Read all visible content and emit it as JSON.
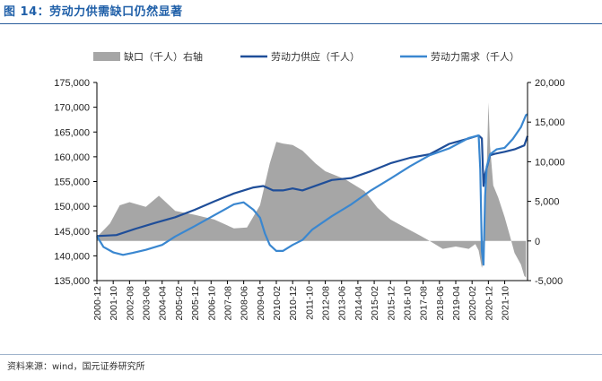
{
  "figure": {
    "title": "图 14：劳动力供需缺口仍然显著",
    "source": "资料来源：wind，国元证券研究所"
  },
  "colors": {
    "gap": "#a6a6a6",
    "supply": "#1f4e99",
    "demand": "#3a87d0",
    "title": "#1f5fa8",
    "axis": "#000000"
  },
  "chart_data": {
    "type": "line",
    "title": "",
    "xlabel": "",
    "ylabel": "",
    "ylabel_right": "",
    "ylim": [
      135000,
      175000
    ],
    "ylim_right": [
      -5000,
      20000
    ],
    "yticks": [
      "175,000",
      "170,000",
      "165,000",
      "160,000",
      "155,000",
      "150,000",
      "145,000",
      "140,000",
      "135,000"
    ],
    "yticks_right": [
      "20,000",
      "15,000",
      "10,000",
      "5,000",
      "0",
      "-5,000"
    ],
    "xticks": [
      "2000-12",
      "2001-10",
      "2002-08",
      "2003-06",
      "2004-04",
      "2005-02",
      "2005-12",
      "2006-10",
      "2007-08",
      "2008-06",
      "2009-04",
      "2010-02",
      "2010-12",
      "2011-10",
      "2012-08",
      "2013-06",
      "2014-04",
      "2015-02",
      "2015-12",
      "2016-10",
      "2017-08",
      "2018-06",
      "2019-04",
      "2020-02",
      "2020-12",
      "2021-10"
    ],
    "x_start": "2000-12",
    "legend": [
      "缺口（千人）右轴",
      "劳动力供应（千人）",
      "劳动力需求（千人）"
    ],
    "series": [
      {
        "name": "缺口（千人）右轴",
        "type": "area",
        "axis": "right",
        "points": [
          [
            0,
            500
          ],
          [
            8,
            2200
          ],
          [
            14,
            4500
          ],
          [
            20,
            4900
          ],
          [
            30,
            4300
          ],
          [
            38,
            5700
          ],
          [
            48,
            3800
          ],
          [
            60,
            3300
          ],
          [
            72,
            2700
          ],
          [
            84,
            1600
          ],
          [
            92,
            1700
          ],
          [
            100,
            4500
          ],
          [
            106,
            9800
          ],
          [
            110,
            12500
          ],
          [
            114,
            12300
          ],
          [
            120,
            12100
          ],
          [
            126,
            11400
          ],
          [
            134,
            9800
          ],
          [
            140,
            8800
          ],
          [
            152,
            7800
          ],
          [
            164,
            6300
          ],
          [
            172,
            4200
          ],
          [
            180,
            2700
          ],
          [
            188,
            1800
          ],
          [
            198,
            700
          ],
          [
            204,
            0
          ],
          [
            212,
            -1000
          ],
          [
            220,
            -700
          ],
          [
            228,
            -1000
          ],
          [
            232,
            -400
          ],
          [
            234,
            -1200
          ],
          [
            236,
            -3400
          ],
          [
            237,
            -2500
          ],
          [
            238,
            3000
          ],
          [
            239,
            9000
          ],
          [
            240,
            17500
          ],
          [
            241,
            12000
          ],
          [
            243,
            7000
          ],
          [
            246,
            5500
          ],
          [
            250,
            3000
          ],
          [
            253,
            800
          ],
          [
            256,
            -1500
          ],
          [
            260,
            -3000
          ],
          [
            262,
            -4400
          ],
          [
            263,
            -4600
          ]
        ]
      },
      {
        "name": "劳动力供应（千人）",
        "type": "line",
        "axis": "left",
        "points": [
          [
            0,
            144000
          ],
          [
            12,
            144200
          ],
          [
            24,
            145500
          ],
          [
            36,
            146700
          ],
          [
            48,
            147800
          ],
          [
            60,
            149300
          ],
          [
            72,
            151000
          ],
          [
            84,
            152600
          ],
          [
            96,
            153800
          ],
          [
            102,
            154100
          ],
          [
            108,
            153200
          ],
          [
            114,
            153200
          ],
          [
            120,
            153600
          ],
          [
            126,
            153200
          ],
          [
            132,
            153900
          ],
          [
            144,
            155300
          ],
          [
            156,
            155700
          ],
          [
            168,
            157100
          ],
          [
            180,
            158700
          ],
          [
            192,
            159800
          ],
          [
            204,
            160500
          ],
          [
            216,
            162600
          ],
          [
            228,
            163700
          ],
          [
            234,
            164300
          ],
          [
            236,
            163700
          ],
          [
            237,
            154100
          ],
          [
            238,
            156500
          ],
          [
            241,
            160300
          ],
          [
            244,
            160600
          ],
          [
            250,
            161000
          ],
          [
            256,
            161500
          ],
          [
            262,
            162300
          ],
          [
            264,
            164200
          ]
        ]
      },
      {
        "name": "劳动力需求（千人）",
        "type": "line",
        "axis": "left",
        "points": [
          [
            0,
            144000
          ],
          [
            4,
            141800
          ],
          [
            10,
            140700
          ],
          [
            16,
            140200
          ],
          [
            22,
            140600
          ],
          [
            30,
            141200
          ],
          [
            40,
            142200
          ],
          [
            48,
            143900
          ],
          [
            60,
            146000
          ],
          [
            72,
            148200
          ],
          [
            84,
            150400
          ],
          [
            90,
            150800
          ],
          [
            96,
            149300
          ],
          [
            100,
            147700
          ],
          [
            103,
            144500
          ],
          [
            106,
            142200
          ],
          [
            110,
            141000
          ],
          [
            114,
            141000
          ],
          [
            120,
            142200
          ],
          [
            126,
            143200
          ],
          [
            132,
            145300
          ],
          [
            144,
            148000
          ],
          [
            156,
            150400
          ],
          [
            168,
            153200
          ],
          [
            180,
            155600
          ],
          [
            192,
            158100
          ],
          [
            204,
            160300
          ],
          [
            216,
            161700
          ],
          [
            228,
            163800
          ],
          [
            234,
            164300
          ],
          [
            235,
            157500
          ],
          [
            236,
            141000
          ],
          [
            237,
            138200
          ],
          [
            238,
            152000
          ],
          [
            239,
            158000
          ],
          [
            241,
            160500
          ],
          [
            245,
            161500
          ],
          [
            250,
            161800
          ],
          [
            255,
            163600
          ],
          [
            260,
            166000
          ],
          [
            263,
            168400
          ],
          [
            264,
            168600
          ]
        ]
      }
    ]
  }
}
